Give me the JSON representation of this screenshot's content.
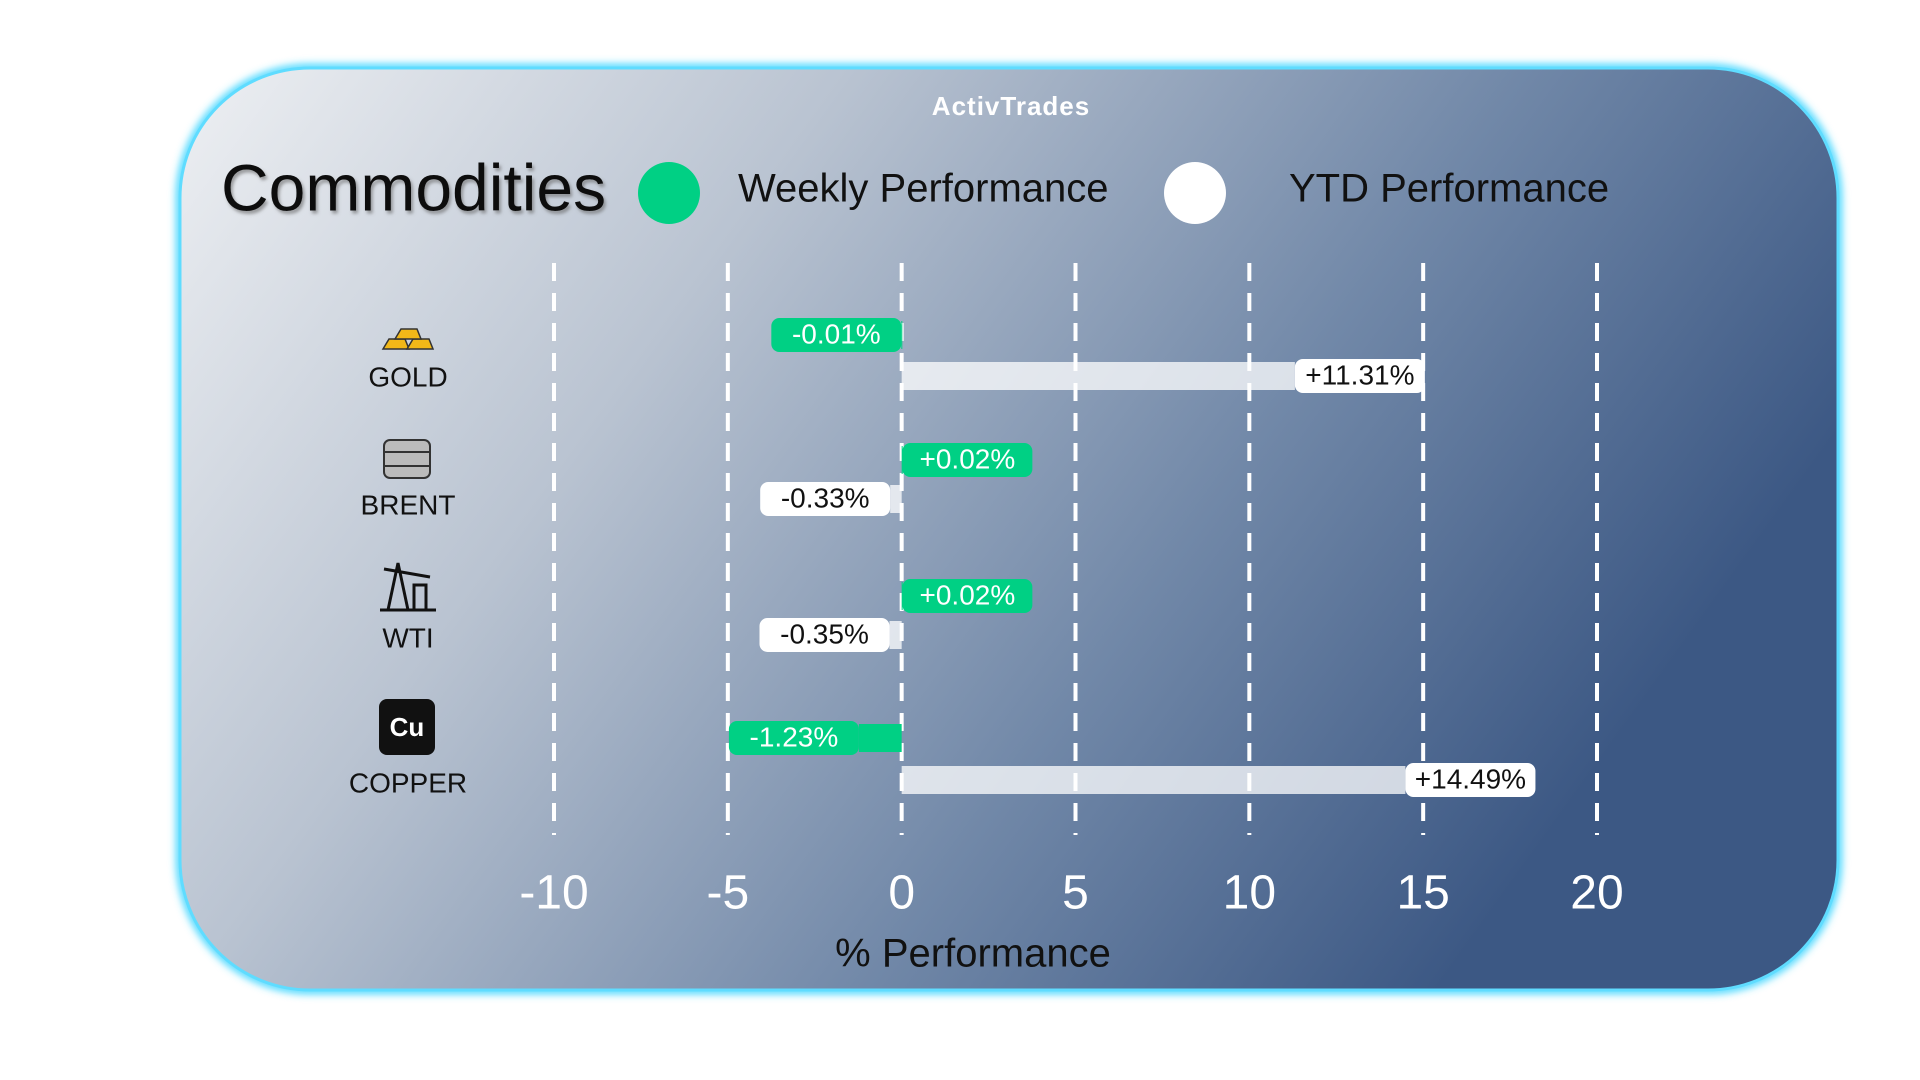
{
  "chart_data": {
    "type": "bar",
    "orientation": "horizontal",
    "title": "Commodities",
    "logo": "ActivTrades",
    "x_label": "% Performance",
    "categories": [
      "GOLD",
      "BRENT",
      "WTI",
      "COPPER"
    ],
    "series": [
      {
        "name": "Weekly Performance",
        "color": "#00d084",
        "values": [
          -0.01,
          0.02,
          0.02,
          -1.23
        ],
        "value_labels": [
          "-0.01%",
          "+0.02%",
          "+0.02%",
          "-1.23%"
        ]
      },
      {
        "name": "YTD Performance",
        "color": "#ffffff",
        "values": [
          11.31,
          -0.33,
          -0.35,
          14.49
        ],
        "value_labels": [
          "+11.31%",
          "-0.33%",
          "-0.35%",
          "+14.49%"
        ]
      }
    ],
    "xlim": [
      -10,
      20
    ],
    "xticks": [
      -10,
      -5,
      0,
      5,
      10,
      15,
      20
    ],
    "grid": true
  }
}
